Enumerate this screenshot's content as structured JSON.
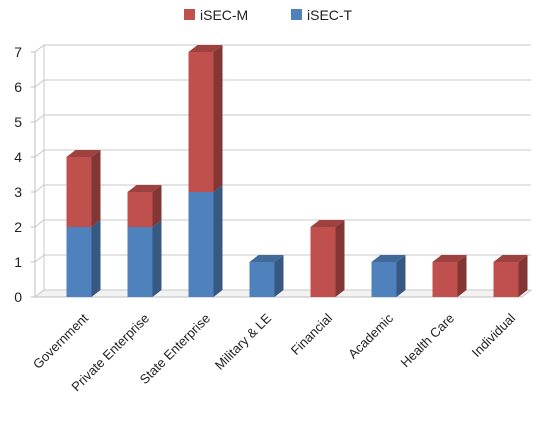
{
  "chart_data": {
    "type": "bar",
    "stacked": true,
    "three_d": true,
    "categories": [
      "Government",
      "Private Enterprise",
      "State Enterprise",
      "Military & LE",
      "Financial",
      "Academic",
      "Health Care",
      "Individual"
    ],
    "series": [
      {
        "name": "iSEC-T",
        "color": "#4f81bd",
        "values": [
          2,
          2,
          3,
          1,
          0,
          1,
          0,
          0
        ]
      },
      {
        "name": "iSEC-M",
        "color": "#c0504d",
        "values": [
          2,
          1,
          4,
          0,
          2,
          0,
          1,
          1
        ]
      }
    ],
    "ylim": [
      0,
      7
    ],
    "yticks": [
      "0",
      "1",
      "2",
      "3",
      "4",
      "5",
      "6",
      "7"
    ],
    "grid": true,
    "legend_position": "top-center",
    "legend_order": [
      "iSEC-M",
      "iSEC-T"
    ],
    "title": "",
    "xlabel": "",
    "ylabel": ""
  }
}
